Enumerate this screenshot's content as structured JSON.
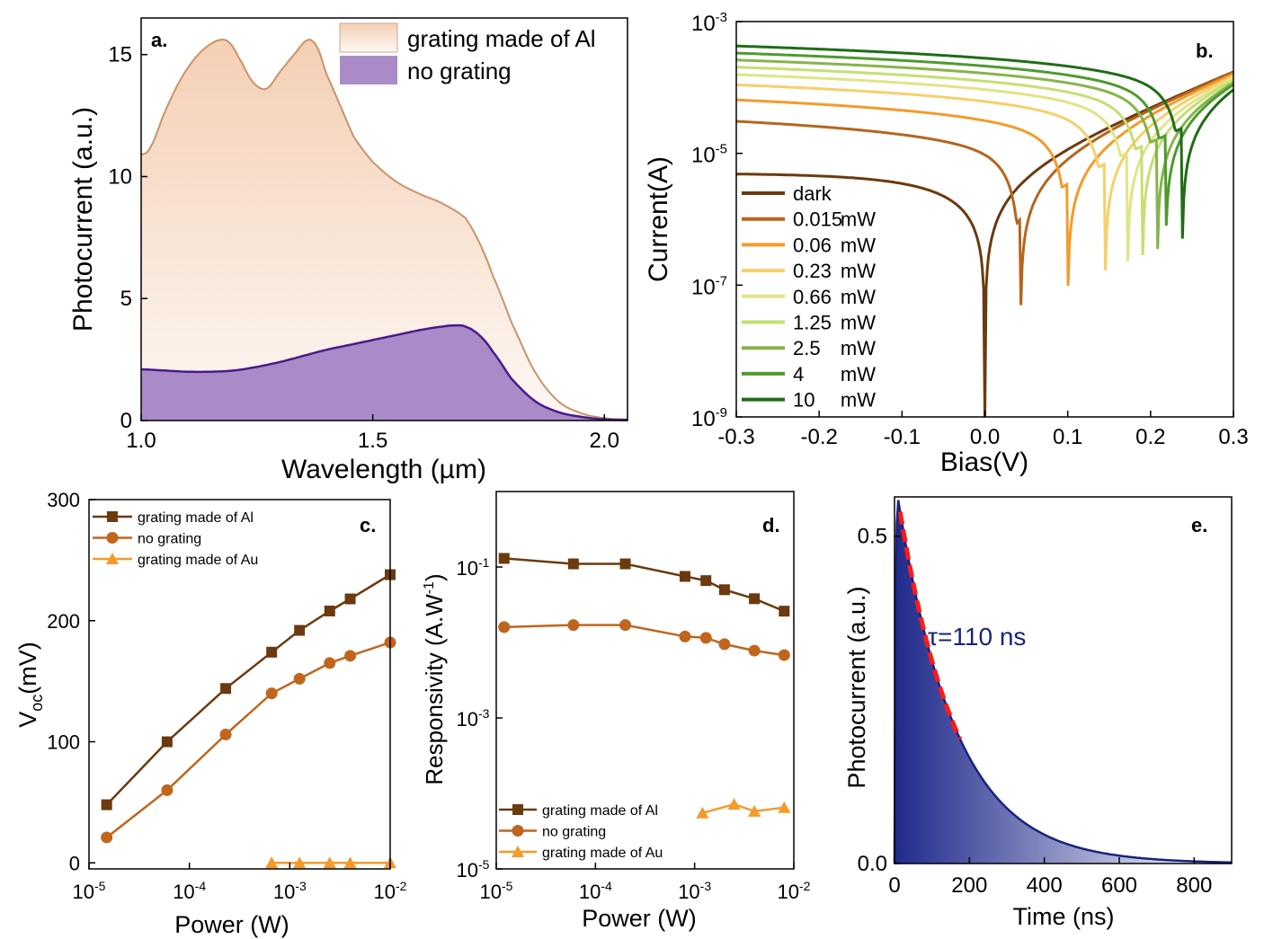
{
  "chart_data": [
    {
      "type": "area",
      "panel_label": "a.",
      "xlabel": "Wavelength (µm)",
      "ylabel": "Photocurrent (a.u.)",
      "xlim": [
        1.0,
        2.05
      ],
      "ylim": [
        0,
        16.5
      ],
      "xticks": [
        1.0,
        1.5,
        2.0
      ],
      "xtick_labels": [
        "1.0",
        "1.5",
        "2.0"
      ],
      "yticks": [
        0,
        5,
        10,
        15
      ],
      "ytick_labels": [
        "0",
        "5",
        "10",
        "15"
      ],
      "legend_position": "top-right",
      "colors": {
        "al": "#c8946a",
        "al_fill": "#f6ddcc",
        "none": "#4b1a8c",
        "none_fill": "#a98bc8"
      },
      "series": [
        {
          "name": "grating made of Al",
          "x": [
            1.0,
            1.02,
            1.05,
            1.08,
            1.11,
            1.14,
            1.17,
            1.19,
            1.21,
            1.24,
            1.27,
            1.3,
            1.33,
            1.36,
            1.38,
            1.4,
            1.43,
            1.46,
            1.5,
            1.55,
            1.6,
            1.65,
            1.7,
            1.73,
            1.76,
            1.8,
            1.85,
            1.9,
            1.95,
            2.0,
            2.05
          ],
          "values": [
            10.9,
            11.2,
            12.6,
            13.8,
            14.7,
            15.3,
            15.6,
            15.5,
            14.9,
            13.9,
            13.6,
            14.3,
            15.0,
            15.6,
            15.3,
            14.2,
            12.9,
            11.6,
            10.6,
            9.8,
            9.3,
            8.9,
            8.3,
            7.3,
            5.9,
            4.0,
            2.0,
            0.8,
            0.3,
            0.1,
            0.05
          ]
        },
        {
          "name": "no grating",
          "x": [
            1.0,
            1.05,
            1.1,
            1.15,
            1.2,
            1.25,
            1.3,
            1.35,
            1.4,
            1.45,
            1.5,
            1.55,
            1.6,
            1.65,
            1.68,
            1.7,
            1.73,
            1.76,
            1.8,
            1.85,
            1.9,
            1.95,
            2.0,
            2.05
          ],
          "values": [
            2.1,
            2.05,
            2.0,
            2.0,
            2.05,
            2.2,
            2.4,
            2.65,
            2.9,
            3.1,
            3.3,
            3.5,
            3.7,
            3.85,
            3.9,
            3.85,
            3.5,
            2.8,
            1.7,
            0.8,
            0.35,
            0.15,
            0.05,
            0.02
          ]
        }
      ]
    },
    {
      "type": "line",
      "panel_label": "b.",
      "xlabel": "Bias(V)",
      "ylabel": "Current(A)",
      "xlim": [
        -0.3,
        0.3
      ],
      "yscale": "log",
      "ylim": [
        1e-09,
        0.001
      ],
      "xticks": [
        -0.3,
        -0.2,
        -0.1,
        0.0,
        0.1,
        0.2,
        0.3
      ],
      "xtick_labels": [
        "-0.3",
        "-0.2",
        "-0.1",
        "0.0",
        "0.1",
        "0.2",
        "0.3"
      ],
      "yticks": [
        1e-09,
        1e-07,
        1e-05,
        0.001
      ],
      "ytick_base": [
        "10",
        "10",
        "10",
        "10"
      ],
      "ytick_exp": [
        "-9",
        "-7",
        "-5",
        "-3"
      ],
      "legend_position": "left",
      "dark_current_model": {
        "a": 5e-06,
        "b": 11.9
      },
      "series": [
        {
          "name": "dark",
          "power": "",
          "voc": 0.0,
          "i_reverse": 0.0,
          "color": "#6b3a0e"
        },
        {
          "name": "0.015",
          "power": "mW",
          "voc": 0.043,
          "i_reverse": 3e-05,
          "color": "#b5651d"
        },
        {
          "name": "0.06",
          "power": "mW",
          "voc": 0.1,
          "i_reverse": 6.25e-05,
          "color": "#f39b2b"
        },
        {
          "name": "0.23",
          "power": "mW",
          "voc": 0.145,
          "i_reverse": 0.000105,
          "color": "#f8cf6a"
        },
        {
          "name": "0.66",
          "power": "mW",
          "voc": 0.172,
          "i_reverse": 0.00015,
          "color": "#dfe586"
        },
        {
          "name": "1.25",
          "power": "mW",
          "voc": 0.19,
          "i_reverse": 0.000195,
          "color": "#c4df72"
        },
        {
          "name": "2.5",
          "power": "mW",
          "voc": 0.208,
          "i_reverse": 0.00025,
          "color": "#86b44a"
        },
        {
          "name": "4",
          "power": "mW",
          "voc": 0.218,
          "i_reverse": 0.00032,
          "color": "#4e9a2f"
        },
        {
          "name": "10",
          "power": "mW",
          "voc": 0.238,
          "i_reverse": 0.00041,
          "color": "#1f6d15"
        }
      ]
    },
    {
      "type": "line",
      "panel_label": "c.",
      "xlabel": "Power (W)",
      "ylabel_main": "V",
      "ylabel_sub": "oc",
      "ylabel_rest": "(mV)",
      "xscale": "log",
      "xlim": [
        1e-05,
        0.01
      ],
      "ylim": [
        -5,
        300
      ],
      "xticks": [
        1e-05,
        0.0001,
        0.001,
        0.01
      ],
      "xtick_base": [
        "10",
        "10",
        "10",
        "10"
      ],
      "xtick_exp": [
        "-5",
        "-4",
        "-3",
        "-2"
      ],
      "yticks": [
        0,
        100,
        200,
        300
      ],
      "ytick_labels": [
        "0",
        "100",
        "200",
        "300"
      ],
      "legend_position": "top-left",
      "series": [
        {
          "name": "grating made of Al",
          "marker": "square",
          "color": "#6b3a0e",
          "x": [
            1.5e-05,
            6e-05,
            0.00023,
            0.00066,
            0.00125,
            0.0025,
            0.004,
            0.01
          ],
          "values": [
            48,
            100,
            144,
            174,
            192,
            208,
            218,
            238
          ]
        },
        {
          "name": "no grating",
          "marker": "circle",
          "color": "#c0651d",
          "x": [
            1.5e-05,
            6e-05,
            0.00023,
            0.00066,
            0.00125,
            0.0025,
            0.004,
            0.01
          ],
          "values": [
            21,
            60,
            106,
            140,
            152,
            165,
            171,
            182
          ]
        },
        {
          "name": "grating made of Au",
          "marker": "triangle",
          "color": "#f39b2b",
          "x": [
            0.00066,
            0.00125,
            0.0025,
            0.004,
            0.01
          ],
          "values": [
            0,
            0,
            0,
            0,
            0
          ]
        }
      ]
    },
    {
      "type": "line",
      "panel_label": "d.",
      "xlabel": "Power (W)",
      "ylabel_main": "Responsivity (A.W",
      "ylabel_sup": "-1",
      "ylabel_end": ")",
      "xscale": "log",
      "yscale": "log",
      "xlim": [
        1e-05,
        0.01
      ],
      "ylim": [
        1e-05,
        1
      ],
      "xticks": [
        1e-05,
        0.0001,
        0.001,
        0.01
      ],
      "xtick_base": [
        "10",
        "10",
        "10",
        "10"
      ],
      "xtick_exp": [
        "-5",
        "-4",
        "-3",
        "-2"
      ],
      "yticks": [
        1e-05,
        0.001,
        0.1
      ],
      "ytick_base": [
        "10",
        "10",
        "10"
      ],
      "ytick_exp": [
        "-5",
        "-3",
        "-1"
      ],
      "legend_position": "bottom-left",
      "series": [
        {
          "name": "grating made of Al",
          "marker": "square",
          "color": "#6b3a0e",
          "x": [
            1.2e-05,
            6e-05,
            0.0002,
            0.0008,
            0.0013,
            0.002,
            0.004,
            0.008
          ],
          "values": [
            0.13,
            0.11,
            0.11,
            0.075,
            0.066,
            0.05,
            0.038,
            0.026
          ]
        },
        {
          "name": "no grating",
          "marker": "circle",
          "color": "#c0651d",
          "x": [
            1.2e-05,
            6e-05,
            0.0002,
            0.0008,
            0.0013,
            0.002,
            0.004,
            0.008
          ],
          "values": [
            0.016,
            0.017,
            0.017,
            0.012,
            0.0115,
            0.0095,
            0.0078,
            0.0068
          ]
        },
        {
          "name": "grating made of Au",
          "marker": "triangle",
          "color": "#f39b2b",
          "x": [
            0.0012,
            0.0025,
            0.004,
            0.008
          ],
          "values": [
            5.5e-05,
            7.2e-05,
            5.8e-05,
            6.5e-05
          ]
        }
      ]
    },
    {
      "type": "area",
      "panel_label": "e.",
      "xlabel": "Time (ns)",
      "ylabel": "Photocurrent (a.u.)",
      "xlim": [
        0,
        900
      ],
      "ylim": [
        0,
        0.56
      ],
      "xticks": [
        0,
        200,
        400,
        600,
        800
      ],
      "xtick_labels": [
        "0",
        "200",
        "400",
        "600",
        "800"
      ],
      "yticks": [
        0.0,
        0.5
      ],
      "ytick_labels": [
        "0.0",
        "0.5"
      ],
      "annotation": "τ=110 ns",
      "peak_time": 10,
      "peak_value": 0.555,
      "tau": 110,
      "fit_range": [
        15,
        175
      ],
      "colors": {
        "line": "#1a237e",
        "fill_dark": "#1f2a8c",
        "fit": "#ff1a1a"
      }
    }
  ]
}
